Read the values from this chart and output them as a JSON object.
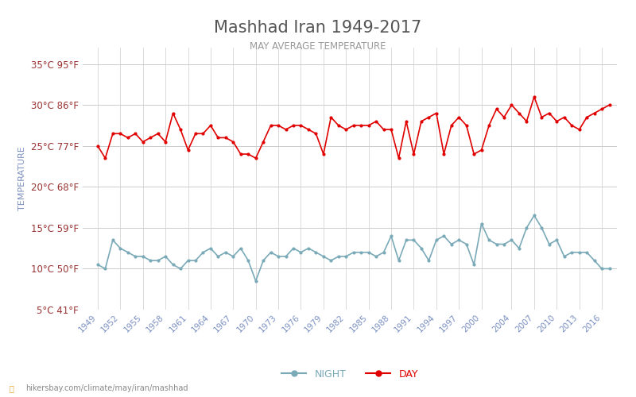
{
  "title": "Mashhad Iran 1949-2017",
  "subtitle": "MAY AVERAGE TEMPERATURE",
  "ylabel": "TEMPERATURE",
  "watermark": "hikersbay.com/climate/may/iran/mashhad",
  "years": [
    1949,
    1950,
    1951,
    1952,
    1953,
    1954,
    1955,
    1956,
    1957,
    1958,
    1959,
    1960,
    1961,
    1962,
    1963,
    1964,
    1965,
    1966,
    1967,
    1968,
    1969,
    1970,
    1971,
    1972,
    1973,
    1974,
    1975,
    1976,
    1977,
    1978,
    1979,
    1980,
    1981,
    1982,
    1983,
    1984,
    1985,
    1986,
    1987,
    1988,
    1989,
    1990,
    1991,
    1992,
    1993,
    1994,
    1995,
    1996,
    1997,
    1998,
    1999,
    2000,
    2001,
    2002,
    2003,
    2004,
    2005,
    2006,
    2007,
    2008,
    2009,
    2010,
    2011,
    2012,
    2013,
    2014,
    2015,
    2016,
    2017
  ],
  "day_temps": [
    25.0,
    23.5,
    26.5,
    26.5,
    26.0,
    26.5,
    25.5,
    26.0,
    26.5,
    25.5,
    29.0,
    27.0,
    24.5,
    26.5,
    26.5,
    27.5,
    26.0,
    26.0,
    25.5,
    24.0,
    24.0,
    23.5,
    25.5,
    27.5,
    27.5,
    27.0,
    27.5,
    27.5,
    27.0,
    26.5,
    24.0,
    28.5,
    27.5,
    27.0,
    27.5,
    27.5,
    27.5,
    28.0,
    27.0,
    27.0,
    23.5,
    28.0,
    24.0,
    28.0,
    28.5,
    29.0,
    24.0,
    27.5,
    28.5,
    27.5,
    24.0,
    24.5,
    27.5,
    29.5,
    28.5,
    30.0,
    29.0,
    28.0,
    31.0,
    28.5,
    29.0,
    28.0,
    28.5,
    27.5,
    27.0,
    28.5,
    29.0,
    29.5,
    30.0
  ],
  "night_temps": [
    10.5,
    10.0,
    13.5,
    12.5,
    12.0,
    11.5,
    11.5,
    11.0,
    11.0,
    11.5,
    10.5,
    10.0,
    11.0,
    11.0,
    12.0,
    12.5,
    11.5,
    12.0,
    11.5,
    12.5,
    11.0,
    8.5,
    11.0,
    12.0,
    11.5,
    11.5,
    12.5,
    12.0,
    12.5,
    12.0,
    11.5,
    11.0,
    11.5,
    11.5,
    12.0,
    12.0,
    12.0,
    11.5,
    12.0,
    14.0,
    11.0,
    13.5,
    13.5,
    12.5,
    11.0,
    13.5,
    14.0,
    13.0,
    13.5,
    13.0,
    10.5,
    15.5,
    13.5,
    13.0,
    13.0,
    13.5,
    12.5,
    15.0,
    16.5,
    15.0,
    13.0,
    13.5,
    11.5,
    12.0,
    12.0,
    12.0,
    11.0,
    10.0,
    10.0
  ],
  "day_color": "#e00000",
  "night_color": "#7aaab8",
  "bg_color": "#ffffff",
  "grid_color": "#cccccc",
  "title_color": "#555555",
  "subtitle_color": "#999999",
  "label_color": "#993333",
  "yticks_c": [
    5,
    10,
    15,
    20,
    25,
    30,
    35
  ],
  "yticks_f": [
    41,
    50,
    59,
    68,
    77,
    86,
    95
  ],
  "xtick_years": [
    1949,
    1952,
    1955,
    1958,
    1961,
    1964,
    1967,
    1970,
    1973,
    1976,
    1979,
    1982,
    1985,
    1988,
    1991,
    1994,
    1997,
    2000,
    2004,
    2007,
    2010,
    2013,
    2016
  ]
}
